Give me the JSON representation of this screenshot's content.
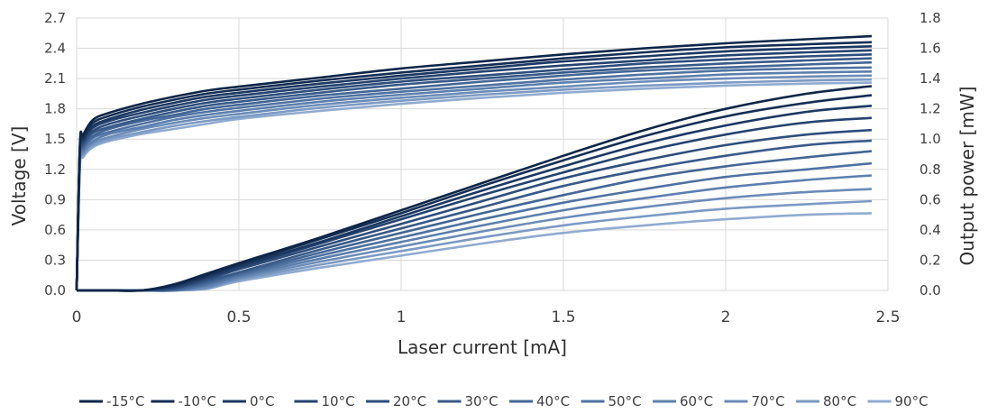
{
  "chart_data": {
    "type": "line",
    "xlabel": "Laser current [mA]",
    "ylabel_left": "Voltage [V]",
    "ylabel_right": "Output power [mW]",
    "xlim": [
      0,
      2.5
    ],
    "ylim_left": [
      0,
      2.7
    ],
    "ylim_right": [
      0,
      1.8
    ],
    "x_ticks": [
      0,
      0.5,
      1,
      1.5,
      2,
      2.5
    ],
    "x_tick_labels": [
      "0",
      "0.5",
      "1",
      "1.5",
      "2",
      "2.5"
    ],
    "y_left_ticks": [
      0,
      0.3,
      0.6,
      0.9,
      1.2,
      1.5,
      1.8,
      2.1,
      2.4,
      2.7
    ],
    "y_left_tick_labels": [
      "0.0",
      "0.3",
      "0.6",
      "0.9",
      "1.2",
      "1.5",
      "1.8",
      "2.1",
      "2.4",
      "2.7"
    ],
    "y_right_ticks": [
      0,
      0.2,
      0.4,
      0.6,
      0.8,
      1.0,
      1.2,
      1.4,
      1.6,
      1.8
    ],
    "y_right_tick_labels": [
      "0.0",
      "0.2",
      "0.4",
      "0.6",
      "0.8",
      "1.0",
      "1.2",
      "1.4",
      "1.6",
      "1.8"
    ],
    "grid": true,
    "legend_position": "bottom",
    "x": [
      0,
      0.01,
      0.02,
      0.05,
      0.1,
      0.2,
      0.3,
      0.4,
      0.5,
      0.75,
      1.0,
      1.25,
      1.5,
      1.75,
      2.0,
      2.25,
      2.45
    ],
    "series": [
      {
        "name": "-15°C",
        "color": "#0d2648",
        "voltage": [
          0,
          1.44,
          1.54,
          1.69,
          1.76,
          1.85,
          1.92,
          1.98,
          2.02,
          2.11,
          2.2,
          2.27,
          2.34,
          2.4,
          2.45,
          2.49,
          2.52
        ],
        "power": [
          0,
          0,
          0,
          0,
          0,
          0,
          0.04,
          0.11,
          0.18,
          0.35,
          0.53,
          0.71,
          0.89,
          1.06,
          1.2,
          1.3,
          1.35
        ]
      },
      {
        "name": "-10°C",
        "color": "#142e54",
        "voltage": [
          0,
          1.42,
          1.52,
          1.66,
          1.73,
          1.82,
          1.89,
          1.95,
          1.99,
          2.08,
          2.16,
          2.23,
          2.3,
          2.36,
          2.41,
          2.44,
          2.46
        ],
        "power": [
          0,
          0,
          0,
          0,
          0,
          0,
          0.035,
          0.1,
          0.17,
          0.34,
          0.51,
          0.69,
          0.86,
          1.02,
          1.15,
          1.24,
          1.29
        ]
      },
      {
        "name": "0°C",
        "color": "#1c3862",
        "voltage": [
          0,
          1.4,
          1.5,
          1.63,
          1.7,
          1.79,
          1.86,
          1.92,
          1.96,
          2.05,
          2.13,
          2.2,
          2.27,
          2.32,
          2.37,
          2.4,
          2.42
        ],
        "power": [
          0,
          0,
          0,
          0,
          0,
          0,
          0.03,
          0.09,
          0.16,
          0.32,
          0.49,
          0.66,
          0.82,
          0.97,
          1.09,
          1.18,
          1.22
        ]
      },
      {
        "name": "10°C",
        "color": "#25436f",
        "voltage": [
          0,
          1.38,
          1.48,
          1.61,
          1.68,
          1.76,
          1.83,
          1.89,
          1.93,
          2.02,
          2.1,
          2.17,
          2.23,
          2.28,
          2.33,
          2.36,
          2.38
        ],
        "power": [
          0,
          0,
          0,
          0,
          0,
          0,
          0.02,
          0.08,
          0.15,
          0.31,
          0.47,
          0.63,
          0.78,
          0.92,
          1.03,
          1.11,
          1.14
        ]
      },
      {
        "name": "20°C",
        "color": "#2e4e7c",
        "voltage": [
          0,
          1.36,
          1.46,
          1.58,
          1.65,
          1.73,
          1.8,
          1.86,
          1.9,
          1.99,
          2.07,
          2.13,
          2.19,
          2.25,
          2.29,
          2.32,
          2.34
        ],
        "power": [
          0,
          0,
          0,
          0,
          0,
          0,
          0.015,
          0.07,
          0.14,
          0.29,
          0.44,
          0.59,
          0.74,
          0.86,
          0.96,
          1.03,
          1.06
        ]
      },
      {
        "name": "30°C",
        "color": "#385a88",
        "voltage": [
          0,
          1.34,
          1.44,
          1.56,
          1.62,
          1.7,
          1.77,
          1.83,
          1.87,
          1.96,
          2.04,
          2.1,
          2.16,
          2.21,
          2.25,
          2.28,
          2.3
        ],
        "power": [
          0,
          0,
          0,
          0,
          0,
          0,
          0.01,
          0.06,
          0.12,
          0.27,
          0.41,
          0.55,
          0.69,
          0.8,
          0.89,
          0.96,
          0.99
        ]
      },
      {
        "name": "40°C",
        "color": "#436695",
        "voltage": [
          0,
          1.32,
          1.42,
          1.53,
          1.6,
          1.68,
          1.74,
          1.8,
          1.84,
          1.93,
          2.0,
          2.07,
          2.13,
          2.18,
          2.21,
          2.24,
          2.26
        ],
        "power": [
          0,
          0,
          0,
          0,
          0,
          0,
          0.005,
          0.05,
          0.11,
          0.25,
          0.38,
          0.51,
          0.63,
          0.74,
          0.82,
          0.88,
          0.92
        ]
      },
      {
        "name": "50°C",
        "color": "#4f72a1",
        "voltage": [
          0,
          1.3,
          1.4,
          1.51,
          1.57,
          1.65,
          1.72,
          1.77,
          1.81,
          1.9,
          1.97,
          2.03,
          2.09,
          2.14,
          2.18,
          2.2,
          2.21
        ],
        "power": [
          0,
          0,
          0,
          0,
          0,
          0,
          0,
          0.04,
          0.1,
          0.23,
          0.35,
          0.47,
          0.58,
          0.67,
          0.75,
          0.8,
          0.84
        ]
      },
      {
        "name": "60°C",
        "color": "#5c7fad",
        "voltage": [
          0,
          1.28,
          1.38,
          1.48,
          1.55,
          1.62,
          1.69,
          1.74,
          1.78,
          1.87,
          1.94,
          2.0,
          2.06,
          2.1,
          2.14,
          2.16,
          2.17
        ],
        "power": [
          0,
          0,
          0,
          0,
          0,
          0,
          0,
          0.03,
          0.09,
          0.21,
          0.32,
          0.43,
          0.53,
          0.61,
          0.68,
          0.73,
          0.76
        ]
      },
      {
        "name": "70°C",
        "color": "#6b8cb8",
        "voltage": [
          0,
          1.26,
          1.36,
          1.46,
          1.52,
          1.6,
          1.66,
          1.71,
          1.75,
          1.84,
          1.91,
          1.97,
          2.02,
          2.07,
          2.1,
          2.12,
          2.13
        ],
        "power": [
          0,
          0,
          0,
          0,
          0,
          0,
          0,
          0.02,
          0.08,
          0.19,
          0.29,
          0.39,
          0.48,
          0.55,
          0.61,
          0.65,
          0.67
        ]
      },
      {
        "name": "80°C",
        "color": "#7c9ac3",
        "voltage": [
          0,
          1.24,
          1.34,
          1.44,
          1.5,
          1.57,
          1.63,
          1.68,
          1.72,
          1.81,
          1.88,
          1.94,
          1.99,
          2.03,
          2.06,
          2.08,
          2.09
        ],
        "power": [
          0,
          0,
          0,
          0,
          0,
          0,
          0,
          0.015,
          0.07,
          0.17,
          0.26,
          0.35,
          0.43,
          0.49,
          0.54,
          0.57,
          0.59
        ]
      },
      {
        "name": "90°C",
        "color": "#90abcf",
        "voltage": [
          0,
          1.22,
          1.32,
          1.42,
          1.48,
          1.55,
          1.6,
          1.65,
          1.7,
          1.78,
          1.85,
          1.91,
          1.96,
          2.0,
          2.03,
          2.05,
          2.06
        ],
        "power": [
          0,
          0,
          0,
          0,
          0,
          0,
          0,
          0.01,
          0.06,
          0.15,
          0.23,
          0.31,
          0.38,
          0.43,
          0.47,
          0.5,
          0.51
        ]
      }
    ]
  }
}
